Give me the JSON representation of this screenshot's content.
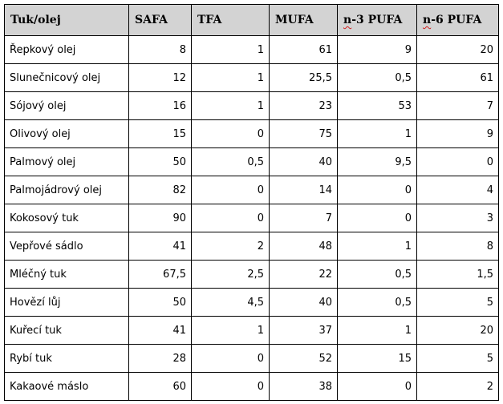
{
  "table": {
    "headers": {
      "name": "Tuk/olej",
      "safa": "SAFA",
      "tfa": "TFA",
      "mufa": "MUFA",
      "n3_prefix": "n",
      "n3_rest": "-3 PUFA",
      "n6_prefix": "n",
      "n6_rest": "-6 PUFA"
    },
    "rows": [
      {
        "name": "Řepkový olej",
        "safa": "8",
        "tfa": "1",
        "mufa": "61",
        "n3": "9",
        "n6": "20"
      },
      {
        "name": "Slunečnicový olej",
        "safa": "12",
        "tfa": "1",
        "mufa": "25,5",
        "n3": "0,5",
        "n6": "61"
      },
      {
        "name": "Sójový olej",
        "safa": "16",
        "tfa": "1",
        "mufa": "23",
        "n3": "53",
        "n6": "7"
      },
      {
        "name": "Olivový olej",
        "safa": "15",
        "tfa": "0",
        "mufa": "75",
        "n3": "1",
        "n6": "9"
      },
      {
        "name": "Palmový olej",
        "safa": "50",
        "tfa": "0,5",
        "mufa": "40",
        "n3": "9,5",
        "n6": "0"
      },
      {
        "name": "Palmojádrový olej",
        "safa": "82",
        "tfa": "0",
        "mufa": "14",
        "n3": "0",
        "n6": "4"
      },
      {
        "name": "Kokosový tuk",
        "safa": "90",
        "tfa": "0",
        "mufa": "7",
        "n3": "0",
        "n6": "3"
      },
      {
        "name": "Vepřové sádlo",
        "safa": "41",
        "tfa": "2",
        "mufa": "48",
        "n3": "1",
        "n6": "8"
      },
      {
        "name": "Mléčný tuk",
        "safa": "67,5",
        "tfa": "2,5",
        "mufa": "22",
        "n3": "0,5",
        "n6": "1,5"
      },
      {
        "name": "Hovězí lůj",
        "safa": "50",
        "tfa": "4,5",
        "mufa": "40",
        "n3": "0,5",
        "n6": "5"
      },
      {
        "name": "Kuřecí tuk",
        "safa": "41",
        "tfa": "1",
        "mufa": "37",
        "n3": "1",
        "n6": "20"
      },
      {
        "name": "Rybí tuk",
        "safa": "28",
        "tfa": "0",
        "mufa": "52",
        "n3": "15",
        "n6": "5"
      },
      {
        "name": "Kakaové máslo",
        "safa": "60",
        "tfa": "0",
        "mufa": "38",
        "n3": "0",
        "n6": "2"
      }
    ]
  },
  "colors": {
    "header_background": "#d3d3d3",
    "border": "#000000",
    "spellcheck_underline": "#d02020"
  }
}
